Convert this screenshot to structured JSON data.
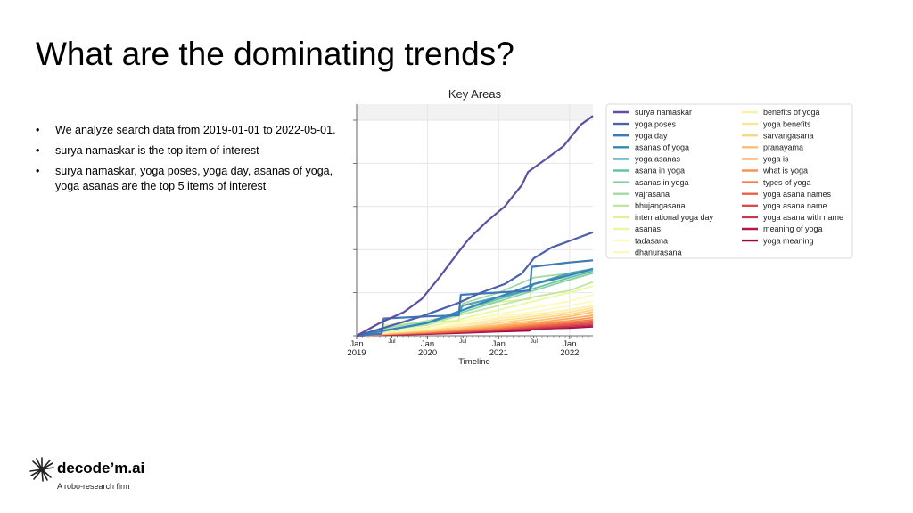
{
  "slide": {
    "title": "What are the dominating trends?",
    "bullets": [
      "We analyze search data from 2019-01-01 to 2022-05-01.",
      "surya namaskar is the top item of interest",
      "surya namaskar, yoga poses, yoga day, asanas of yoga, yoga asanas are the top 5 items of interest"
    ],
    "bullet_marker": "•"
  },
  "brand": {
    "name": "decode’m.ai",
    "tagline": "A robo-research firm",
    "icon": "starburst-logo-icon"
  },
  "chart_data": {
    "type": "line",
    "title": "Key Areas",
    "xlabel": "Timeline",
    "ylabel": "",
    "x_range": [
      "2019-01-01",
      "2022-05-01"
    ],
    "y_range": [
      0,
      100
    ],
    "grid": true,
    "legend_placement": "right",
    "x_ticks": [
      {
        "date": "2019-01-01",
        "label": "Jan",
        "year": "2019",
        "major": true
      },
      {
        "date": "2019-07-01",
        "label": "Jul",
        "year": "",
        "major": false
      },
      {
        "date": "2020-01-01",
        "label": "Jan",
        "year": "2020",
        "major": true
      },
      {
        "date": "2020-07-01",
        "label": "Jul",
        "year": "",
        "major": false
      },
      {
        "date": "2021-01-01",
        "label": "Jan",
        "year": "2021",
        "major": true
      },
      {
        "date": "2021-07-01",
        "label": "Jul",
        "year": "",
        "major": false
      },
      {
        "date": "2022-01-01",
        "label": "Jan",
        "year": "2022",
        "major": true
      }
    ],
    "series": [
      {
        "name": "surya namaskar",
        "color": "#5e4fa2",
        "points": [
          [
            "2019-01-01",
            0
          ],
          [
            "2019-05-01",
            6
          ],
          [
            "2019-09-01",
            11
          ],
          [
            "2019-12-01",
            17
          ],
          [
            "2020-03-01",
            27
          ],
          [
            "2020-06-01",
            38
          ],
          [
            "2020-08-01",
            45
          ],
          [
            "2020-11-01",
            53
          ],
          [
            "2021-02-01",
            60
          ],
          [
            "2021-05-01",
            70
          ],
          [
            "2021-06-01",
            76
          ],
          [
            "2021-09-01",
            82
          ],
          [
            "2021-12-01",
            88
          ],
          [
            "2022-03-01",
            98
          ],
          [
            "2022-05-01",
            102
          ]
        ]
      },
      {
        "name": "yoga poses",
        "color": "#4d61ab",
        "points": [
          [
            "2019-01-01",
            0
          ],
          [
            "2019-06-01",
            4
          ],
          [
            "2019-12-01",
            9
          ],
          [
            "2020-06-01",
            15
          ],
          [
            "2020-10-01",
            20
          ],
          [
            "2021-02-01",
            24
          ],
          [
            "2021-05-01",
            29
          ],
          [
            "2021-07-01",
            36
          ],
          [
            "2021-10-01",
            41
          ],
          [
            "2022-01-01",
            44
          ],
          [
            "2022-05-01",
            48
          ]
        ]
      },
      {
        "name": "yoga day",
        "color": "#3e78b5",
        "points": [
          [
            "2019-01-01",
            0
          ],
          [
            "2019-05-10",
            1
          ],
          [
            "2019-05-20",
            8
          ],
          [
            "2020-01-01",
            9
          ],
          [
            "2020-06-10",
            9.5
          ],
          [
            "2020-06-20",
            19
          ],
          [
            "2021-06-10",
            21
          ],
          [
            "2021-06-20",
            32
          ],
          [
            "2022-01-01",
            34
          ],
          [
            "2022-05-01",
            35
          ]
        ]
      },
      {
        "name": "asanas of yoga",
        "color": "#3288bd",
        "points": [
          [
            "2019-01-01",
            0
          ],
          [
            "2019-07-01",
            3
          ],
          [
            "2020-01-01",
            6
          ],
          [
            "2020-07-01",
            12
          ],
          [
            "2021-01-01",
            18
          ],
          [
            "2021-07-01",
            24
          ],
          [
            "2022-01-01",
            28
          ],
          [
            "2022-05-01",
            31
          ]
        ]
      },
      {
        "name": "yoga asanas",
        "color": "#4fa1b1",
        "points": [
          [
            "2019-01-01",
            0
          ],
          [
            "2019-07-01",
            3
          ],
          [
            "2020-01-01",
            6
          ],
          [
            "2020-06-01",
            10
          ],
          [
            "2020-07-01",
            14
          ],
          [
            "2021-01-01",
            18
          ],
          [
            "2021-06-01",
            21
          ],
          [
            "2021-07-01",
            24
          ],
          [
            "2022-01-01",
            29
          ],
          [
            "2022-05-01",
            31
          ]
        ]
      },
      {
        "name": "asana in yoga",
        "color": "#66c2a5",
        "points": [
          [
            "2019-01-01",
            0
          ],
          [
            "2019-07-01",
            3
          ],
          [
            "2020-01-01",
            6
          ],
          [
            "2020-07-01",
            12
          ],
          [
            "2021-01-01",
            17
          ],
          [
            "2021-07-01",
            22
          ],
          [
            "2022-01-01",
            27
          ],
          [
            "2022-05-01",
            30
          ]
        ]
      },
      {
        "name": "asanas in yoga",
        "color": "#8acfa4",
        "points": [
          [
            "2019-01-01",
            0
          ],
          [
            "2019-07-01",
            3
          ],
          [
            "2020-01-01",
            6
          ],
          [
            "2020-07-01",
            11
          ],
          [
            "2021-01-01",
            16
          ],
          [
            "2021-07-01",
            21
          ],
          [
            "2022-01-01",
            26
          ],
          [
            "2022-05-01",
            29
          ]
        ]
      },
      {
        "name": "vajrasana",
        "color": "#a2d9a4",
        "points": [
          [
            "2019-01-01",
            0
          ],
          [
            "2019-07-01",
            4
          ],
          [
            "2020-01-01",
            7
          ],
          [
            "2020-06-01",
            10
          ],
          [
            "2020-07-01",
            15
          ],
          [
            "2021-01-01",
            20
          ],
          [
            "2021-07-01",
            27
          ],
          [
            "2022-01-01",
            29
          ],
          [
            "2022-05-01",
            30
          ]
        ]
      },
      {
        "name": "bhujangasana",
        "color": "#c1e6a0",
        "points": [
          [
            "2019-01-01",
            0
          ],
          [
            "2019-07-01",
            3
          ],
          [
            "2020-01-01",
            5
          ],
          [
            "2020-07-01",
            10
          ],
          [
            "2021-01-01",
            14
          ],
          [
            "2021-07-01",
            18
          ],
          [
            "2022-01-01",
            21
          ],
          [
            "2022-05-01",
            25
          ]
        ]
      },
      {
        "name": "international yoga day",
        "color": "#dbf19b",
        "points": [
          [
            "2019-01-01",
            0
          ],
          [
            "2019-05-10",
            1
          ],
          [
            "2019-05-20",
            5
          ],
          [
            "2020-06-10",
            7
          ],
          [
            "2020-06-20",
            14
          ],
          [
            "2021-06-10",
            17
          ],
          [
            "2021-06-20",
            24
          ],
          [
            "2022-01-01",
            27
          ],
          [
            "2022-05-01",
            29
          ]
        ]
      },
      {
        "name": "asanas",
        "color": "#eef7a4",
        "points": [
          [
            "2019-01-01",
            0
          ],
          [
            "2019-07-01",
            2
          ],
          [
            "2020-01-01",
            4
          ],
          [
            "2020-07-01",
            8
          ],
          [
            "2021-01-01",
            12
          ],
          [
            "2021-07-01",
            16
          ],
          [
            "2022-01-01",
            20
          ],
          [
            "2022-05-01",
            23
          ]
        ]
      },
      {
        "name": "tadasana",
        "color": "#fbfbb7",
        "points": [
          [
            "2019-01-01",
            0
          ],
          [
            "2019-07-01",
            2
          ],
          [
            "2020-01-01",
            4
          ],
          [
            "2020-07-01",
            7
          ],
          [
            "2021-01-01",
            10
          ],
          [
            "2021-07-01",
            13
          ],
          [
            "2022-01-01",
            16
          ],
          [
            "2022-05-01",
            19
          ]
        ]
      },
      {
        "name": "dhanurasana",
        "color": "#fff7c0",
        "points": [
          [
            "2019-01-01",
            0
          ],
          [
            "2019-07-01",
            2
          ],
          [
            "2020-01-01",
            3
          ],
          [
            "2020-07-01",
            6
          ],
          [
            "2021-01-01",
            9
          ],
          [
            "2021-07-01",
            11
          ],
          [
            "2022-01-01",
            14
          ],
          [
            "2022-05-01",
            16
          ]
        ]
      },
      {
        "name": "benefits of yoga",
        "color": "#feefa8",
        "points": [
          [
            "2019-01-01",
            0
          ],
          [
            "2019-07-01",
            2
          ],
          [
            "2020-01-01",
            3
          ],
          [
            "2020-07-01",
            5
          ],
          [
            "2021-01-01",
            8
          ],
          [
            "2021-07-01",
            10
          ],
          [
            "2022-01-01",
            12
          ],
          [
            "2022-05-01",
            14
          ]
        ]
      },
      {
        "name": "yoga benefits",
        "color": "#fee49a",
        "points": [
          [
            "2019-01-01",
            0
          ],
          [
            "2019-07-01",
            1.5
          ],
          [
            "2020-01-01",
            3
          ],
          [
            "2020-07-01",
            5
          ],
          [
            "2021-01-01",
            7
          ],
          [
            "2021-07-01",
            9
          ],
          [
            "2022-01-01",
            11
          ],
          [
            "2022-05-01",
            13
          ]
        ]
      },
      {
        "name": "sarvangasana",
        "color": "#fdd385",
        "points": [
          [
            "2019-01-01",
            0
          ],
          [
            "2019-07-01",
            1.5
          ],
          [
            "2020-01-01",
            2.5
          ],
          [
            "2020-07-01",
            4
          ],
          [
            "2021-01-01",
            6
          ],
          [
            "2021-07-01",
            8
          ],
          [
            "2022-01-01",
            10
          ],
          [
            "2022-05-01",
            12
          ]
        ]
      },
      {
        "name": "pranayama",
        "color": "#fdbf6f",
        "points": [
          [
            "2019-01-01",
            0
          ],
          [
            "2019-07-01",
            1.2
          ],
          [
            "2020-01-01",
            2.2
          ],
          [
            "2020-07-01",
            3.5
          ],
          [
            "2021-01-01",
            5
          ],
          [
            "2021-07-01",
            7
          ],
          [
            "2022-01-01",
            9
          ],
          [
            "2022-05-01",
            11
          ]
        ]
      },
      {
        "name": "yoga is",
        "color": "#fca95d",
        "points": [
          [
            "2019-01-01",
            0
          ],
          [
            "2019-07-01",
            1
          ],
          [
            "2020-01-01",
            2
          ],
          [
            "2020-07-01",
            3.2
          ],
          [
            "2021-01-01",
            4.5
          ],
          [
            "2021-07-01",
            6
          ],
          [
            "2022-01-01",
            8
          ],
          [
            "2022-05-01",
            9.5
          ]
        ]
      },
      {
        "name": "what is yoga",
        "color": "#f99252",
        "points": [
          [
            "2019-01-01",
            0
          ],
          [
            "2019-07-01",
            1
          ],
          [
            "2020-01-01",
            1.8
          ],
          [
            "2020-07-01",
            2.8
          ],
          [
            "2021-01-01",
            4
          ],
          [
            "2021-07-01",
            5.5
          ],
          [
            "2022-01-01",
            7
          ],
          [
            "2022-05-01",
            8.5
          ]
        ]
      },
      {
        "name": "types of yoga",
        "color": "#f57a48",
        "points": [
          [
            "2019-01-01",
            0
          ],
          [
            "2019-07-01",
            0.9
          ],
          [
            "2020-01-01",
            1.6
          ],
          [
            "2020-07-01",
            2.5
          ],
          [
            "2021-01-01",
            3.6
          ],
          [
            "2021-07-01",
            5
          ],
          [
            "2022-01-01",
            6.3
          ],
          [
            "2022-05-01",
            7.5
          ]
        ]
      },
      {
        "name": "yoga asana names",
        "color": "#ea6145",
        "points": [
          [
            "2019-01-01",
            0
          ],
          [
            "2019-07-01",
            0.8
          ],
          [
            "2020-01-01",
            1.4
          ],
          [
            "2020-07-01",
            2.2
          ],
          [
            "2021-01-01",
            3.2
          ],
          [
            "2021-07-01",
            4.4
          ],
          [
            "2022-01-01",
            5.6
          ],
          [
            "2022-05-01",
            6.8
          ]
        ]
      },
      {
        "name": "yoga asana name",
        "color": "#dc4a4c",
        "points": [
          [
            "2019-01-01",
            0
          ],
          [
            "2019-07-01",
            0.7
          ],
          [
            "2020-01-01",
            1.2
          ],
          [
            "2020-07-01",
            2
          ],
          [
            "2021-01-01",
            2.9
          ],
          [
            "2021-07-01",
            4
          ],
          [
            "2022-01-01",
            5
          ],
          [
            "2022-05-01",
            6
          ]
        ]
      },
      {
        "name": "yoga asana with name",
        "color": "#c9364f",
        "points": [
          [
            "2019-01-01",
            0
          ],
          [
            "2019-07-01",
            0.6
          ],
          [
            "2020-01-01",
            1.1
          ],
          [
            "2020-07-01",
            1.8
          ],
          [
            "2021-01-01",
            2.6
          ],
          [
            "2021-07-01",
            3.6
          ],
          [
            "2022-01-01",
            4.4
          ],
          [
            "2022-05-01",
            5.2
          ]
        ]
      },
      {
        "name": "meaning of yoga",
        "color": "#b01a4b",
        "points": [
          [
            "2019-01-01",
            0
          ],
          [
            "2019-07-01",
            0.5
          ],
          [
            "2020-01-01",
            0.9
          ],
          [
            "2020-07-01",
            1.5
          ],
          [
            "2021-01-01",
            2.2
          ],
          [
            "2021-07-01",
            3
          ],
          [
            "2022-01-01",
            3.8
          ],
          [
            "2022-05-01",
            4.5
          ]
        ]
      },
      {
        "name": "yoga meaning",
        "color": "#9e0142",
        "points": [
          [
            "2019-01-01",
            0
          ],
          [
            "2019-07-01",
            0.5
          ],
          [
            "2020-01-01",
            0.8
          ],
          [
            "2020-07-01",
            1.3
          ],
          [
            "2021-01-01",
            1.9
          ],
          [
            "2021-06-10",
            2.3
          ],
          [
            "2021-06-20",
            3.2
          ],
          [
            "2022-01-01",
            3.6
          ],
          [
            "2022-05-01",
            4.2
          ]
        ]
      }
    ]
  }
}
